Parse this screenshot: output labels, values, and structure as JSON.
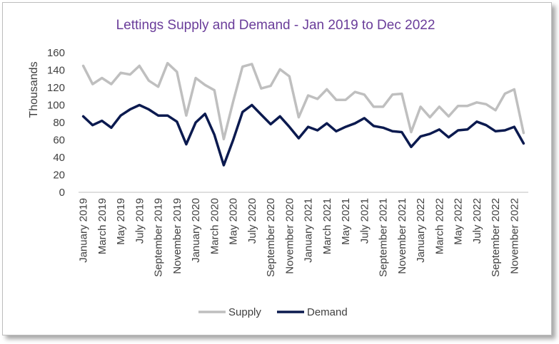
{
  "chart_data": {
    "type": "line",
    "title": "Lettings Supply and Demand - Jan 2019 to Dec 2022",
    "ylabel": "Thousands",
    "xlabel": "",
    "ylim": [
      0,
      160
    ],
    "yticks": [
      "0",
      "20",
      "40",
      "60",
      "80",
      "100",
      "120",
      "140",
      "160"
    ],
    "grid": false,
    "legend_position": "bottom",
    "categories": [
      "January 2019",
      "February 2019",
      "March 2019",
      "April 2019",
      "May 2019",
      "June 2019",
      "July 2019",
      "August 2019",
      "September 2019",
      "October 2019",
      "November 2019",
      "December 2019",
      "January 2020",
      "February 2020",
      "March 2020",
      "April 2020",
      "May 2020",
      "June 2020",
      "July 2020",
      "August 2020",
      "September 2020",
      "October 2020",
      "November 2020",
      "December 2020",
      "January 2021",
      "February 2021",
      "March 2021",
      "April 2021",
      "May 2021",
      "June 2021",
      "July 2021",
      "August 2021",
      "September 2021",
      "October 2021",
      "November 2021",
      "December 2021",
      "January 2022",
      "February 2022",
      "March 2022",
      "April 2022",
      "May 2022",
      "June 2022",
      "July 2022",
      "August 2022",
      "September 2022",
      "October 2022",
      "November 2022",
      "December 2022"
    ],
    "series": [
      {
        "name": "Supply",
        "color": "#bfbfbf",
        "values": [
          145,
          124,
          131,
          124,
          137,
          135,
          145,
          128,
          121,
          148,
          138,
          88,
          131,
          123,
          117,
          61,
          104,
          144,
          147,
          119,
          122,
          141,
          133,
          86,
          111,
          107,
          118,
          106,
          106,
          115,
          112,
          98,
          98,
          112,
          113,
          69,
          98,
          86,
          98,
          87,
          99,
          99,
          103,
          101,
          94,
          113,
          118,
          68
        ]
      },
      {
        "name": "Demand",
        "color": "#0b1a4f",
        "values": [
          87,
          77,
          82,
          74,
          88,
          95,
          100,
          95,
          88,
          88,
          81,
          55,
          80,
          90,
          66,
          31,
          60,
          92,
          100,
          89,
          78,
          87,
          75,
          62,
          75,
          71,
          79,
          70,
          75,
          79,
          85,
          76,
          74,
          70,
          69,
          52,
          64,
          67,
          72,
          63,
          71,
          72,
          81,
          77,
          70,
          71,
          75,
          56
        ]
      }
    ]
  }
}
